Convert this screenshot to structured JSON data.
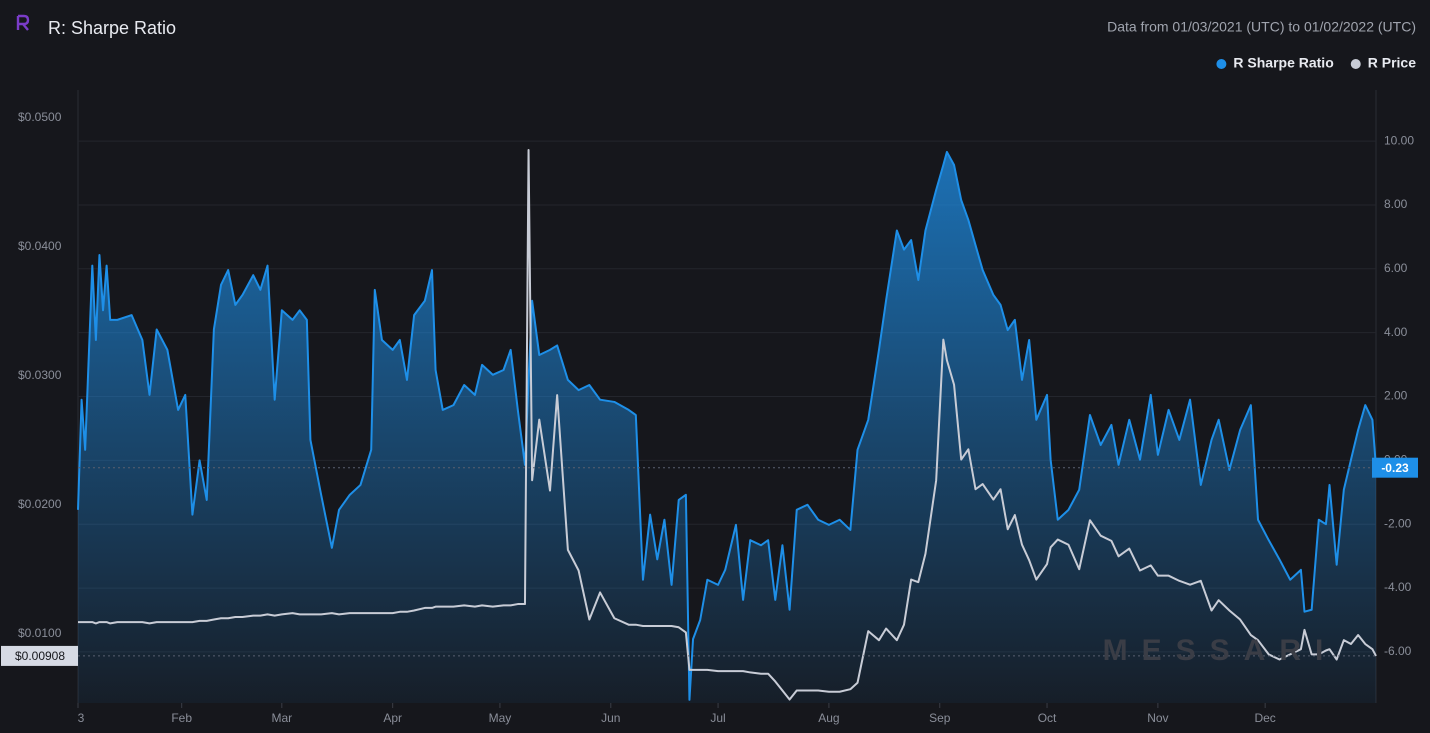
{
  "chart_data": {
    "type": "line",
    "title": "R: Sharpe Ratio",
    "subtitle": "Data from 01/03/2021 (UTC) to 01/02/2022 (UTC)",
    "watermark": "MESSARI",
    "grid": true,
    "xlim": [
      0,
      363
    ],
    "xticks": [
      {
        "value": 0,
        "label": "3"
      },
      {
        "value": 29,
        "label": "Feb"
      },
      {
        "value": 57,
        "label": "Mar"
      },
      {
        "value": 88,
        "label": "Apr"
      },
      {
        "value": 118,
        "label": "May"
      },
      {
        "value": 149,
        "label": "Jun"
      },
      {
        "value": 179,
        "label": "Jul"
      },
      {
        "value": 210,
        "label": "Aug"
      },
      {
        "value": 241,
        "label": "Sep"
      },
      {
        "value": 271,
        "label": "Oct"
      },
      {
        "value": 302,
        "label": "Nov"
      },
      {
        "value": 332,
        "label": "Dec"
      }
    ],
    "ylim": [
      0.00543,
      0.05295
    ],
    "yticks": [
      {
        "value": 0.01,
        "label": "$0.0100"
      },
      {
        "value": 0.02,
        "label": "$0.0200"
      },
      {
        "value": 0.03,
        "label": "$0.0300"
      },
      {
        "value": 0.04,
        "label": "$0.0400"
      },
      {
        "value": 0.05,
        "label": "$0.0500"
      }
    ],
    "y2lim": [
      -7.6,
      11.6
    ],
    "y2ticks": [
      {
        "value": -6,
        "label": "-6.00"
      },
      {
        "value": -4,
        "label": "-4.00"
      },
      {
        "value": -2,
        "label": "-2.00"
      },
      {
        "value": 0,
        "label": "0.00"
      },
      {
        "value": 2,
        "label": "2.00"
      },
      {
        "value": 4,
        "label": "4.00"
      },
      {
        "value": 6,
        "label": "6.00"
      },
      {
        "value": 8,
        "label": "8.00"
      },
      {
        "value": 10,
        "label": "10.00"
      }
    ],
    "x": [
      0,
      1,
      2,
      4,
      5,
      6,
      7,
      8,
      9,
      11,
      15,
      18,
      20,
      22,
      25,
      28,
      30,
      32,
      34,
      36,
      38,
      40,
      42,
      44,
      46,
      49,
      51,
      53,
      55,
      57,
      60,
      62,
      64,
      65,
      68,
      71,
      73,
      76,
      79,
      82,
      83,
      85,
      88,
      90,
      92,
      94,
      97,
      99,
      100,
      102,
      105,
      108,
      111,
      113,
      116,
      119,
      121,
      123,
      125,
      126,
      127,
      129,
      132,
      134,
      137,
      140,
      143,
      146,
      150,
      154,
      156,
      158,
      160,
      162,
      164,
      166,
      168,
      170,
      171,
      172,
      174,
      176,
      179,
      181,
      184,
      186,
      188,
      191,
      193,
      195,
      197,
      199,
      201,
      204,
      207,
      210,
      213,
      216,
      218,
      221,
      224,
      226,
      229,
      231,
      233,
      235,
      237,
      240,
      242,
      243,
      245,
      247,
      249,
      251,
      253,
      256,
      258,
      260,
      262,
      264,
      266,
      268,
      271,
      272,
      274,
      277,
      280,
      283,
      286,
      289,
      291,
      294,
      297,
      300,
      302,
      305,
      308,
      311,
      314,
      317,
      319,
      322,
      325,
      328,
      330,
      333,
      336,
      339,
      342,
      343,
      345,
      347,
      349,
      350,
      352,
      354,
      356,
      358,
      360,
      362,
      363
    ],
    "series": [
      {
        "name": "R Sharpe Ratio",
        "color": "#1e8fe8",
        "axis": "y2",
        "last_label": {
          "value": -0.23,
          "label": "-0.23"
        },
        "values": [
          -1.55,
          1.9,
          0.33,
          6.1,
          3.77,
          6.43,
          4.7,
          6.1,
          4.4,
          4.4,
          4.55,
          3.77,
          2.05,
          4.1,
          3.46,
          1.58,
          2.05,
          -1.7,
          0.0,
          -1.24,
          4.1,
          5.5,
          5.96,
          4.87,
          5.18,
          5.8,
          5.34,
          6.1,
          1.9,
          4.7,
          4.4,
          4.7,
          4.4,
          0.64,
          -1.08,
          -2.74,
          -1.55,
          -1.08,
          -0.77,
          0.33,
          5.34,
          3.77,
          3.46,
          3.77,
          2.52,
          4.55,
          5.0,
          5.96,
          2.83,
          1.58,
          1.73,
          2.36,
          2.05,
          2.99,
          2.68,
          2.83,
          3.46,
          1.58,
          -0.14,
          2.5,
          5.0,
          3.3,
          3.46,
          3.6,
          2.52,
          2.2,
          2.36,
          1.9,
          1.83,
          1.58,
          1.42,
          -3.74,
          -1.7,
          -3.1,
          -1.86,
          -3.9,
          -1.24,
          -1.08,
          -7.5,
          -5.6,
          -5.0,
          -3.74,
          -3.9,
          -3.43,
          -2.02,
          -4.37,
          -2.5,
          -2.66,
          -2.5,
          -4.37,
          -2.66,
          -4.68,
          -1.55,
          -1.39,
          -1.86,
          -2.02,
          -1.86,
          -2.18,
          0.33,
          1.27,
          3.46,
          5.02,
          7.2,
          6.6,
          6.9,
          5.65,
          7.2,
          8.47,
          9.25,
          9.66,
          9.25,
          8.15,
          7.53,
          6.74,
          5.96,
          5.18,
          4.87,
          4.08,
          4.4,
          2.52,
          3.77,
          1.27,
          2.05,
          0.02,
          -1.86,
          -1.55,
          -0.92,
          1.42,
          0.48,
          1.11,
          -0.14,
          1.27,
          0.02,
          2.05,
          0.17,
          1.58,
          0.64,
          1.9,
          -0.77,
          0.64,
          1.27,
          -0.3,
          0.95,
          1.73,
          -1.86,
          -2.5,
          -3.1,
          -3.74,
          -3.43,
          -4.74,
          -4.68,
          -1.86,
          -2.0,
          -0.77,
          -3.27,
          -0.92,
          0.02,
          0.95,
          1.73,
          1.27,
          -0.23
        ]
      },
      {
        "name": "R Price",
        "color": "#c8ccd6",
        "last_label": {
          "value": 0.00908,
          "label": "$0.00908"
        },
        "values": [
          0.0117,
          0.0117,
          0.0117,
          0.0117,
          0.0116,
          0.0117,
          0.0117,
          0.0117,
          0.0116,
          0.0117,
          0.0117,
          0.0117,
          0.0116,
          0.0117,
          0.0117,
          0.0117,
          0.0117,
          0.0117,
          0.0118,
          0.0118,
          0.0119,
          0.012,
          0.012,
          0.0121,
          0.0121,
          0.0122,
          0.0122,
          0.0123,
          0.0122,
          0.0123,
          0.0124,
          0.0123,
          0.0123,
          0.0123,
          0.0123,
          0.0124,
          0.0123,
          0.0124,
          0.0124,
          0.0124,
          0.0124,
          0.0124,
          0.0124,
          0.0125,
          0.0125,
          0.0126,
          0.0128,
          0.0128,
          0.0129,
          0.0129,
          0.0129,
          0.013,
          0.0129,
          0.013,
          0.0129,
          0.013,
          0.013,
          0.0131,
          0.0131,
          0.0483,
          0.0227,
          0.0274,
          0.0219,
          0.0293,
          0.0173,
          0.0157,
          0.0119,
          0.014,
          0.012,
          0.0115,
          0.0115,
          0.0114,
          0.0114,
          0.0114,
          0.0114,
          0.0114,
          0.0113,
          0.0109,
          0.008,
          0.008,
          0.008,
          0.008,
          0.0079,
          0.0079,
          0.0079,
          0.0079,
          0.0078,
          0.0077,
          0.0077,
          0.0071,
          0.0064,
          0.0057,
          0.0064,
          0.0064,
          0.0064,
          0.0063,
          0.0063,
          0.0065,
          0.007,
          0.011,
          0.0103,
          0.0112,
          0.0103,
          0.0115,
          0.015,
          0.0148,
          0.017,
          0.0227,
          0.0336,
          0.032,
          0.0301,
          0.0243,
          0.0251,
          0.022,
          0.0224,
          0.0212,
          0.022,
          0.0189,
          0.02,
          0.0177,
          0.0165,
          0.015,
          0.0162,
          0.0175,
          0.0181,
          0.0177,
          0.0158,
          0.0196,
          0.0184,
          0.018,
          0.0168,
          0.0174,
          0.0157,
          0.0161,
          0.0153,
          0.0153,
          0.0149,
          0.0146,
          0.0149,
          0.0126,
          0.0134,
          0.0126,
          0.0119,
          0.0107,
          0.0103,
          0.0092,
          0.0088,
          0.0092,
          0.0096,
          0.0111,
          0.0092,
          0.0092,
          0.0095,
          0.0096,
          0.0088,
          0.0103,
          0.01,
          0.0107,
          0.01,
          0.0096,
          0.00908
        ]
      }
    ]
  }
}
